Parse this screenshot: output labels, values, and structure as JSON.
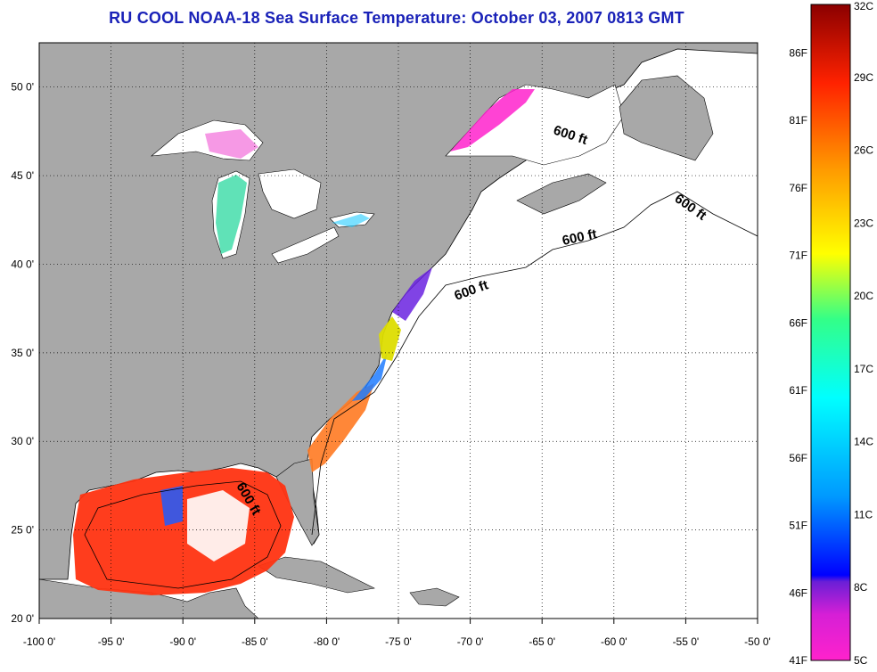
{
  "title": "RU COOL  NOAA-18  Sea Surface Temperature:  October 03, 2007 0813 GMT",
  "map": {
    "lon_range": [
      -100,
      -50
    ],
    "lat_range": [
      20,
      52.5
    ],
    "lon_ticks": [
      "-100 0'",
      "-95 0'",
      "-90 0'",
      "-85 0'",
      "-80 0'",
      "-75 0'",
      "-70 0'",
      "-65 0'",
      "-60 0'",
      "-55 0'",
      "-50 0'"
    ],
    "lat_ticks": [
      "20 0'",
      "25 0'",
      "30 0'",
      "35 0'",
      "40 0'",
      "45 0'",
      "50 0'"
    ],
    "grid": "dotted",
    "land_color": "#a8a8a8",
    "ocean_color": "#ffffff",
    "contour_label": "600 ft"
  },
  "colorbar": {
    "fahrenheit_labels": [
      "41F",
      "46F",
      "51F",
      "56F",
      "61F",
      "66F",
      "71F",
      "76F",
      "81F",
      "86F"
    ],
    "celsius_labels": [
      "5C",
      "8C",
      "11C",
      "14C",
      "17C",
      "20C",
      "23C",
      "26C",
      "29C",
      "32C"
    ],
    "colors": [
      "#ff22cc",
      "#8a1fd6",
      "#0000ff",
      "#0099ff",
      "#00ffff",
      "#33ff88",
      "#ffff00",
      "#ff9900",
      "#ff2200",
      "#8b0000"
    ]
  }
}
